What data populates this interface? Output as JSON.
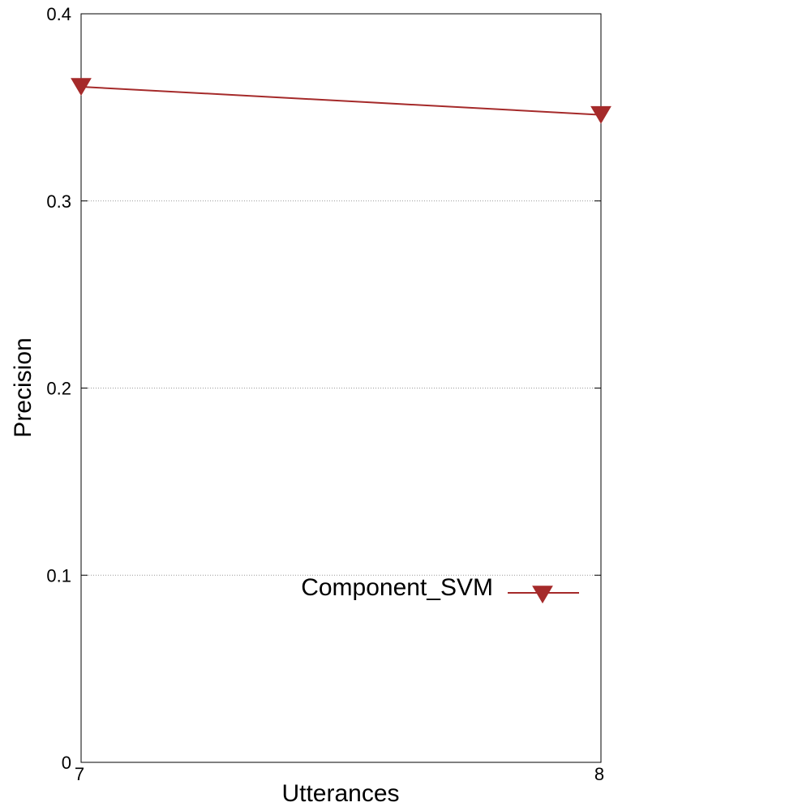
{
  "chart_data": {
    "type": "line",
    "xlabel": "Utterances",
    "ylabel": "Precision",
    "xlim": [
      7,
      8
    ],
    "ylim": [
      0,
      0.4
    ],
    "x_ticks": [
      "7",
      "8"
    ],
    "y_ticks": [
      "0",
      "0.1",
      "0.2",
      "0.3",
      "0.4"
    ],
    "grid": "horizontal dotted",
    "legend_position": "lower-right",
    "series": [
      {
        "name": "Component_SVM",
        "color": "#a52a2a",
        "marker": "down-triangle",
        "x": [
          7,
          8
        ],
        "y": [
          0.361,
          0.346
        ]
      }
    ]
  }
}
